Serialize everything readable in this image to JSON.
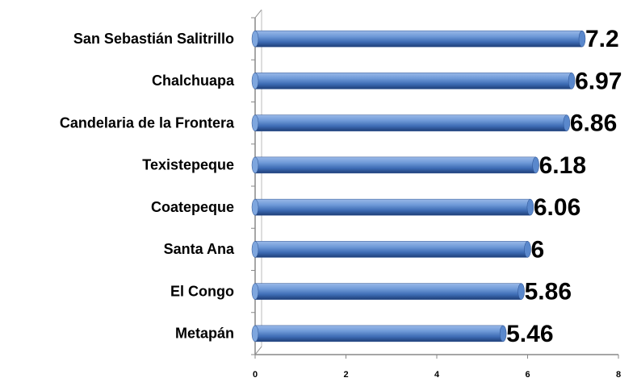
{
  "chart_data": {
    "type": "bar",
    "orientation": "horizontal",
    "categories": [
      "San Sebastián Salitrillo",
      "Chalchuapa",
      "Candelaria de la Frontera",
      "Texistepeque",
      "Coatepeque",
      "Santa Ana",
      "El Congo",
      "Metapán"
    ],
    "values": [
      7.2,
      6.97,
      6.86,
      6.18,
      6.06,
      6,
      5.86,
      5.46
    ],
    "color": "#4a7cc4",
    "xlim": [
      0,
      8
    ],
    "xticks": [
      0,
      2,
      4,
      6,
      8
    ],
    "grid": false
  }
}
